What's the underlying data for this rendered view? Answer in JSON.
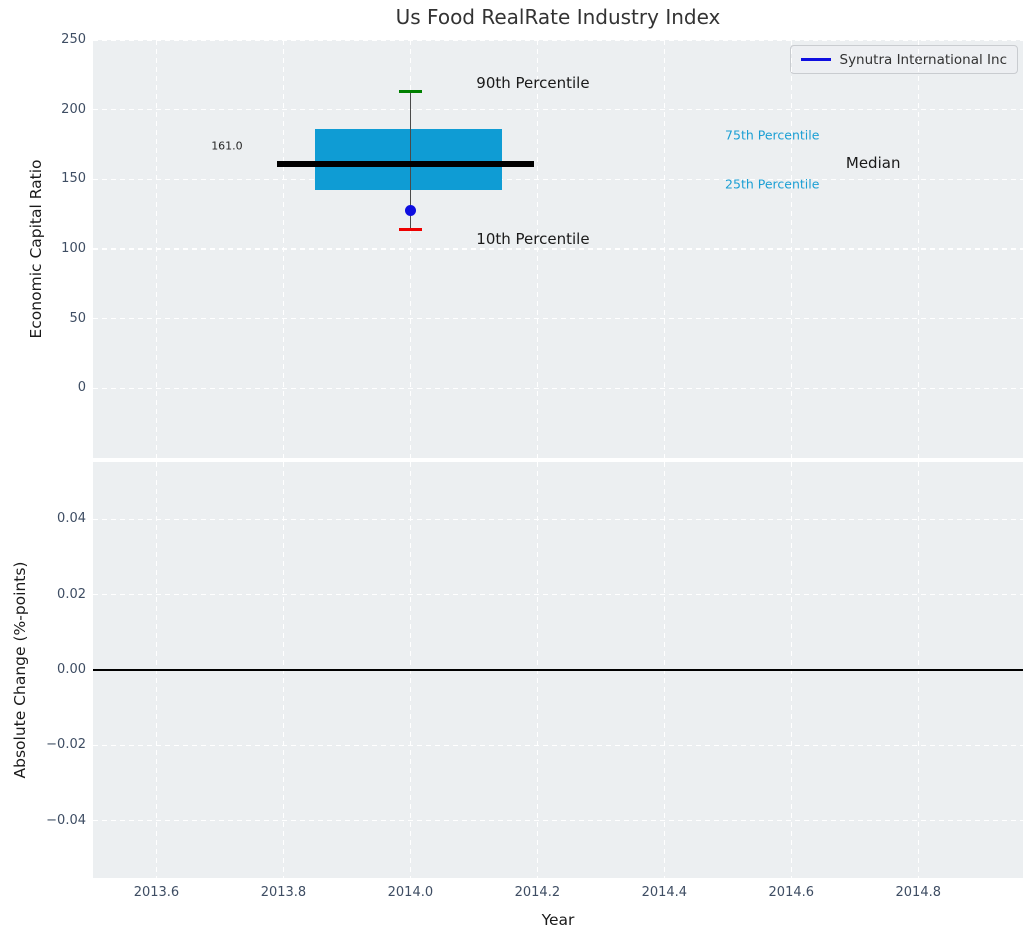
{
  "title": "Us Food RealRate Industry Index",
  "legend": {
    "label": "Synutra International Inc"
  },
  "colors": {
    "axes_bg": "#ECEFF1",
    "grid": "#FFFFFF",
    "box_fill": "#0F9CD4",
    "percentile_label": "#1B9FD4",
    "company_blue": "#0E0EE0",
    "p90_cap_green": "#008000",
    "p10_cap_red": "#EE0000",
    "median_black": "#000000",
    "whisker_gray": "#4A4A4A",
    "tick_label": "#3E4D63"
  },
  "chart_data": [
    {
      "type": "box",
      "title": "Us Food RealRate Industry Index",
      "ylabel": "Economic Capital Ratio",
      "xlabel": "",
      "xlim": [
        2013.5,
        2014.965
      ],
      "ylim": [
        -50,
        250
      ],
      "grid": true,
      "legend_position": "upper right",
      "xticks": {
        "values": [
          2013.6,
          2013.8,
          2014.0,
          2014.2,
          2014.4,
          2014.6,
          2014.8
        ],
        "labels": [
          "2013.6",
          "2013.8",
          "2014.0",
          "2014.2",
          "2014.4",
          "2014.6",
          "2014.8"
        ]
      },
      "yticks": {
        "values": [
          0,
          50,
          100,
          150,
          200,
          250
        ],
        "labels": [
          "0",
          "50",
          "100",
          "150",
          "200",
          "250"
        ]
      },
      "series": [
        {
          "name": "Synutra International Inc",
          "x": 2014.0,
          "p10": 114,
          "p25": 142,
          "median": 161.0,
          "p75": 186,
          "p90": 213,
          "company_value": 127.5
        }
      ],
      "box_geometry": {
        "box_x_range": [
          2013.85,
          2014.145
        ],
        "median_x_range": [
          2013.79,
          2014.195
        ],
        "cap_half_width": 0.018
      },
      "annotations": [
        {
          "text": "161.0",
          "x": 2013.711,
          "y": 174,
          "color": "#262626",
          "size": 11,
          "name": "median-value-annotation"
        },
        {
          "text": "90th Percentile",
          "x": 2014.193,
          "y": 219,
          "color": "#1A1A1A",
          "size": 15,
          "name": "p90-annotation"
        },
        {
          "text": "10th Percentile",
          "x": 2014.193,
          "y": 107,
          "color": "#1A1A1A",
          "size": 15,
          "name": "p10-annotation"
        },
        {
          "text": "75th Percentile",
          "x": 2014.57,
          "y": 182,
          "color": "#1B9FD4",
          "size": 12.5,
          "name": "p75-annotation"
        },
        {
          "text": "25th Percentile",
          "x": 2014.57,
          "y": 147,
          "color": "#1B9FD4",
          "size": 12.5,
          "name": "p25-annotation"
        },
        {
          "text": "Median",
          "x": 2014.729,
          "y": 161.5,
          "color": "#1A1A1A",
          "size": 15,
          "name": "median-annotation"
        }
      ]
    },
    {
      "type": "line",
      "title": "",
      "ylabel": "Absolute Change (%-points)",
      "xlabel": "Year",
      "xlim": [
        2013.5,
        2014.965
      ],
      "ylim": [
        -0.0552,
        0.0552
      ],
      "grid": true,
      "zero_line": 0.0,
      "xticks": {
        "values": [
          2013.6,
          2013.8,
          2014.0,
          2014.2,
          2014.4,
          2014.6,
          2014.8
        ],
        "labels": [
          "2013.6",
          "2013.8",
          "2014.0",
          "2014.2",
          "2014.4",
          "2014.6",
          "2014.8"
        ]
      },
      "yticks": {
        "values": [
          0.04,
          0.02,
          0.0,
          -0.02,
          -0.04
        ],
        "labels": [
          "0.04",
          "0.02",
          "0.00",
          "−0.02",
          "−0.04"
        ]
      },
      "series": []
    }
  ]
}
